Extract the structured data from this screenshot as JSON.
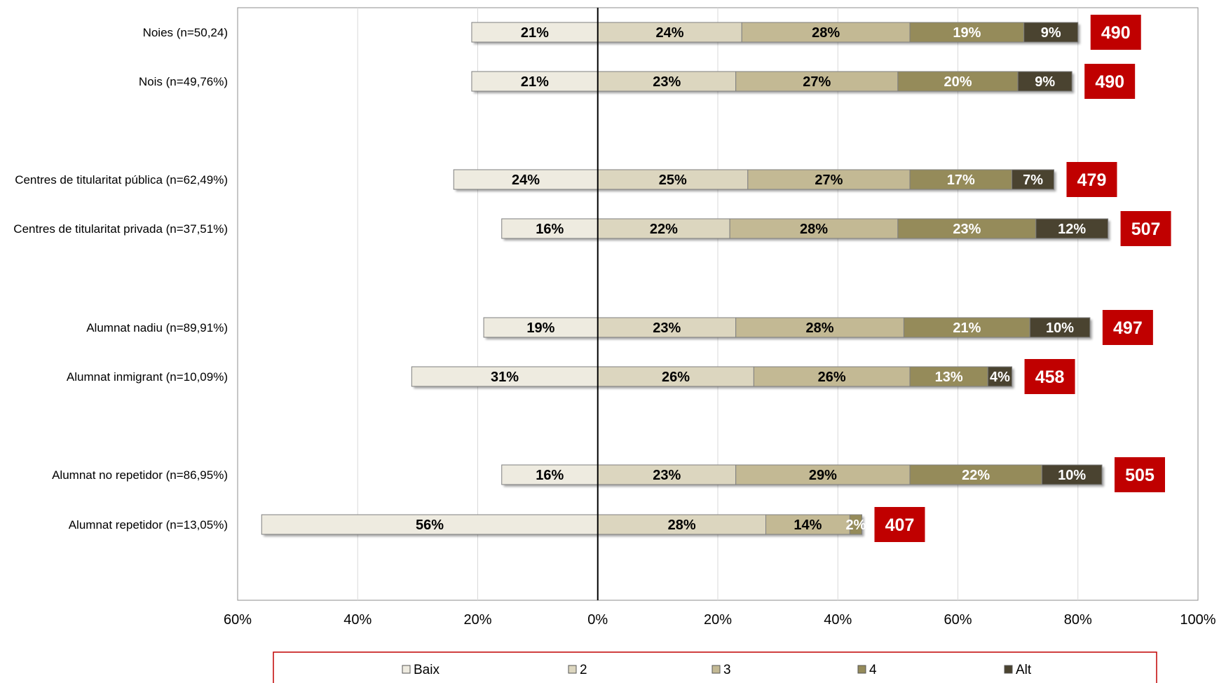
{
  "chart_data": {
    "type": "bar",
    "orientation": "horizontal",
    "stacked": true,
    "diverging": true,
    "title": "",
    "xlabel": "",
    "ylabel": "",
    "xlim": [
      -60,
      100
    ],
    "grid": true,
    "x_ticks": [
      "60%",
      "40%",
      "20%",
      "0%",
      "20%",
      "40%",
      "60%",
      "80%",
      "100%"
    ],
    "legend_position": "bottom",
    "series": [
      {
        "name": "Baix",
        "color": "#EEEBE0"
      },
      {
        "name": "2",
        "color": "#DCD6BF"
      },
      {
        "name": "3",
        "color": "#C3B994"
      },
      {
        "name": "4",
        "color": "#958B5A"
      },
      {
        "name": "Alt",
        "color": "#4A4330"
      }
    ],
    "categories": [
      {
        "label": "Noies (n=50,24)",
        "values": [
          21,
          24,
          28,
          19,
          9
        ],
        "score": "490"
      },
      {
        "label": "Nois (n=49,76%)",
        "values": [
          21,
          23,
          27,
          20,
          9
        ],
        "score": "490"
      },
      {
        "label": "Centres de titularitat pública (n=62,49%)",
        "values": [
          24,
          25,
          27,
          17,
          7
        ],
        "score": "479"
      },
      {
        "label": "Centres de titularitat privada (n=37,51%)",
        "values": [
          16,
          22,
          28,
          23,
          12
        ],
        "score": "507"
      },
      {
        "label": "Alumnat nadiu (n=89,91%)",
        "values": [
          19,
          23,
          28,
          21,
          10
        ],
        "score": "497"
      },
      {
        "label": "Alumnat inmigrant (n=10,09%)",
        "values": [
          31,
          26,
          26,
          13,
          4
        ],
        "score": "458"
      },
      {
        "label": "Alumnat no repetidor (n=86,95%)",
        "values": [
          16,
          23,
          29,
          22,
          10
        ],
        "score": "505"
      },
      {
        "label": "Alumnat repetidor (n=13,05%)",
        "values": [
          56,
          28,
          14,
          2,
          0
        ],
        "score": "407"
      }
    ],
    "colors": {
      "score_box": "#C00000",
      "legend_border": "#C00000",
      "grid": "#D9D9D9",
      "axis": "#000000"
    }
  }
}
